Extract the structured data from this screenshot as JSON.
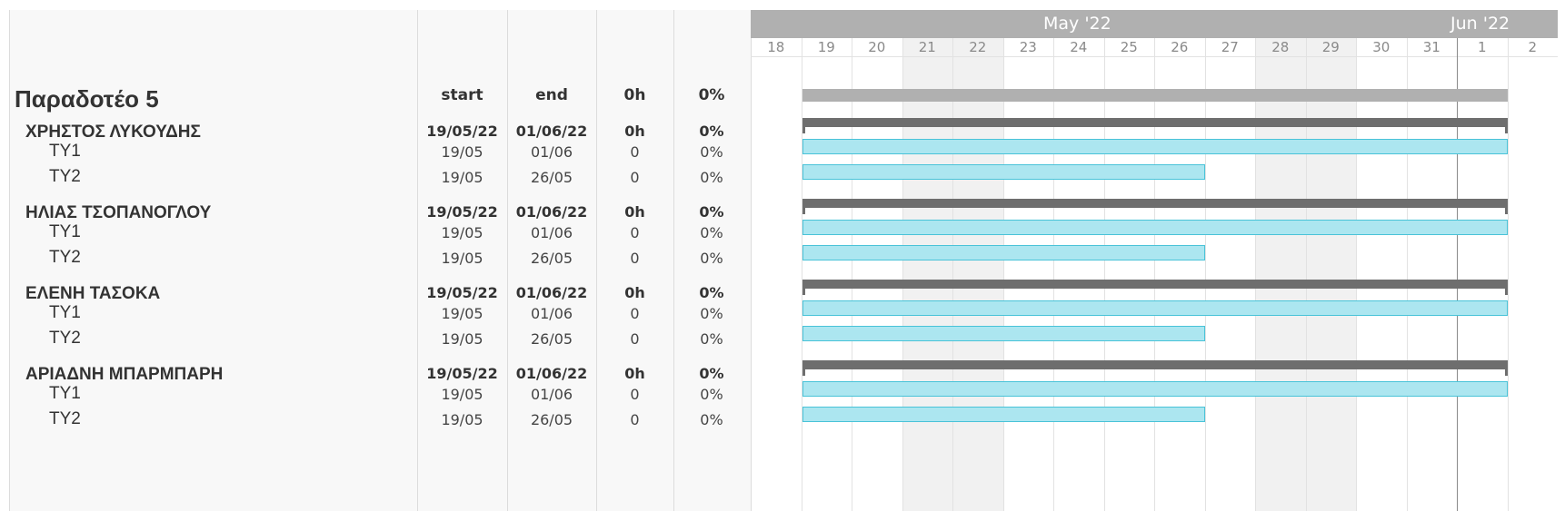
{
  "project": {
    "title": "Παραδοτέο 5",
    "col_headers": {
      "start": "start",
      "end": "end",
      "hours": "0h",
      "percent": "0%"
    }
  },
  "timeline": {
    "months": [
      "May '22",
      "Jun '22"
    ],
    "days": [
      "18",
      "19",
      "20",
      "21",
      "22",
      "23",
      "24",
      "25",
      "26",
      "27",
      "28",
      "29",
      "30",
      "31",
      "1",
      "2"
    ]
  },
  "groups": [
    {
      "name": "ΧΡΗΣΤΟΣ ΛΥΚΟΥΔΗΣ",
      "start": "19/05/22",
      "end": "01/06/22",
      "hours": "0h",
      "percent": "0%",
      "tasks": [
        {
          "name": "ΤΥ1",
          "start": "19/05",
          "end": "01/06",
          "hours": "0",
          "percent": "0%"
        },
        {
          "name": "ΤΥ2",
          "start": "19/05",
          "end": "26/05",
          "hours": "0",
          "percent": "0%"
        }
      ]
    },
    {
      "name": "ΗΛΙΑΣ ΤΣΟΠΑΝΟΓΛΟΥ",
      "start": "19/05/22",
      "end": "01/06/22",
      "hours": "0h",
      "percent": "0%",
      "tasks": [
        {
          "name": "ΤΥ1",
          "start": "19/05",
          "end": "01/06",
          "hours": "0",
          "percent": "0%"
        },
        {
          "name": "ΤΥ2",
          "start": "19/05",
          "end": "26/05",
          "hours": "0",
          "percent": "0%"
        }
      ]
    },
    {
      "name": "ΕΛΕΝΗ ΤΑΣΟΚΑ",
      "start": "19/05/22",
      "end": "01/06/22",
      "hours": "0h",
      "percent": "0%",
      "tasks": [
        {
          "name": "ΤΥ1",
          "start": "19/05",
          "end": "01/06",
          "hours": "0",
          "percent": "0%"
        },
        {
          "name": "ΤΥ2",
          "start": "19/05",
          "end": "26/05",
          "hours": "0",
          "percent": "0%"
        }
      ]
    },
    {
      "name": "ΑΡΙΑΔΝΗ ΜΠΑΡΜΠΑΡΗ",
      "start": "19/05/22",
      "end": "01/06/22",
      "hours": "0h",
      "percent": "0%",
      "tasks": [
        {
          "name": "ΤΥ1",
          "start": "19/05",
          "end": "01/06",
          "hours": "0",
          "percent": "0%"
        },
        {
          "name": "ΤΥ2",
          "start": "19/05",
          "end": "26/05",
          "hours": "0",
          "percent": "0%"
        }
      ]
    }
  ]
}
